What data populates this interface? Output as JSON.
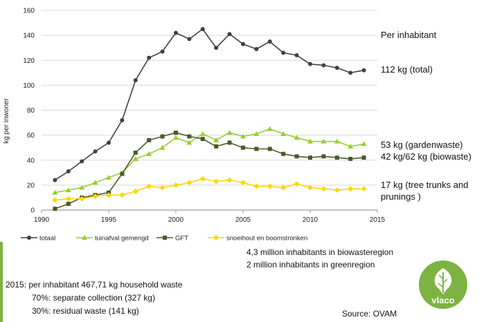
{
  "chart_data": {
    "type": "line",
    "ylabel": "kg per inwoner",
    "xlabel": "",
    "xlim": [
      1990,
      2015
    ],
    "ylim": [
      0,
      160
    ],
    "x_ticks": [
      "1990",
      "1995",
      "2000",
      "2005",
      "2010",
      "2015"
    ],
    "y_ticks": [
      "0",
      "20",
      "40",
      "60",
      "80",
      "100",
      "120",
      "140",
      "160"
    ],
    "grid": true,
    "legend_position": "bottom",
    "x": [
      1991,
      1992,
      1993,
      1994,
      1995,
      1996,
      1997,
      1998,
      1999,
      2000,
      2001,
      2002,
      2003,
      2004,
      2005,
      2006,
      2007,
      2008,
      2009,
      2010,
      2011,
      2012,
      2013,
      2014
    ],
    "series": [
      {
        "name": "totaal",
        "color": "#404040",
        "marker": "circle",
        "values": [
          24,
          31,
          39,
          47,
          54,
          72,
          104,
          122,
          127,
          142,
          137,
          145,
          130,
          141,
          133,
          129,
          135,
          126,
          124,
          117,
          116,
          114,
          110,
          112
        ]
      },
      {
        "name": "tuinafval gemengd",
        "color": "#9acd32",
        "marker": "triangle",
        "values": [
          14,
          16,
          18,
          22,
          26,
          30,
          41,
          45,
          50,
          58,
          54,
          61,
          56,
          62,
          59,
          61,
          65,
          61,
          58,
          55,
          55,
          55,
          51,
          53
        ]
      },
      {
        "name": "GFT",
        "color": "#4a5a2a",
        "marker": "square",
        "values": [
          1,
          5,
          10,
          12,
          14,
          29,
          46,
          56,
          59,
          62,
          59,
          57,
          51,
          54,
          50,
          49,
          49,
          45,
          43,
          42,
          43,
          42,
          41,
          42
        ]
      },
      {
        "name": "snoeihout en boomstronken",
        "color": "#ffd700",
        "marker": "diamond",
        "values": [
          8,
          9,
          9,
          11,
          12,
          12,
          15,
          19,
          18,
          20,
          22,
          25,
          23,
          24,
          22,
          19,
          19,
          18,
          21,
          18,
          17,
          16,
          17,
          17
        ]
      }
    ]
  },
  "annotations": {
    "per_inhabitant": "Per inhabitant",
    "total": "112 kg (total)",
    "gardenwaste": "53 kg (gardenwaste)",
    "biowaste": "42 kg/62 kg (biowaste)",
    "tree_line1": "17 kg (tree trunks and",
    "tree_line2": "prunings )"
  },
  "notes": {
    "biowaste_region": "4,3 million inhabitants in biowasteregion",
    "green_region": "2 million inhabitants in greenregion",
    "line1": "2015: per inhabitant 467,71 kg household waste",
    "line2": "70%: separate collection (327 kg)",
    "line3": "30%: residual waste (141 kg)",
    "source": "Source: OVAM"
  },
  "logo": {
    "text": "vlaco",
    "color": "#7cb342"
  }
}
